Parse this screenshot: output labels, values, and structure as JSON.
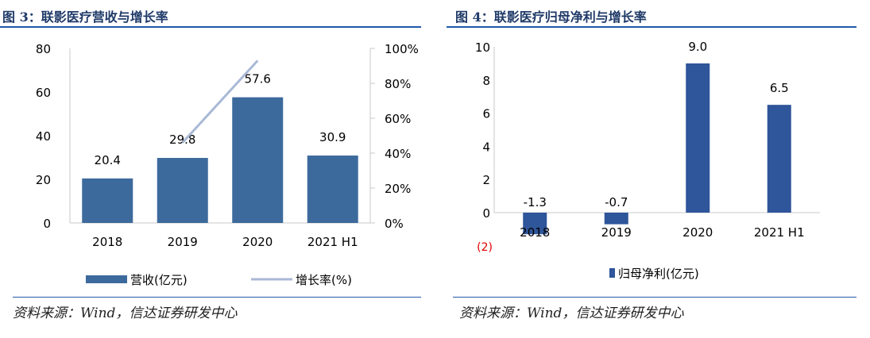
{
  "figures": [
    {
      "title_prefix": "图 3：",
      "title": "联影医疗营收与增长率",
      "source": "资料来源：Wind，信达证券研发中心"
    },
    {
      "title_prefix": "图 4：",
      "title": "联影医疗归母净利与增长率",
      "source": "资料来源：Wind，信达证券研发中心"
    }
  ],
  "colors": {
    "rule": "#1f5aa8",
    "bar_left": "#3d6a9c",
    "line_left": "#a9b9d6",
    "bar_right": "#2f559a",
    "axis": "#c8c8c8",
    "extra_tick": "#e00000"
  },
  "chart_data": [
    {
      "type": "bar",
      "categories": [
        "2018",
        "2019",
        "2020",
        "2021 H1"
      ],
      "series": [
        {
          "name": "营收(亿元)",
          "type": "bar",
          "axis": "left",
          "values": [
            20.4,
            29.8,
            57.6,
            30.9
          ],
          "labels": [
            "20.4",
            "29.8",
            "57.6",
            "30.9"
          ]
        },
        {
          "name": "增长率(%)",
          "type": "line",
          "axis": "right",
          "values": [
            null,
            46,
            93,
            null
          ]
        }
      ],
      "ylim": [
        0,
        80
      ],
      "yticks": [
        "0",
        "20",
        "40",
        "60",
        "80"
      ],
      "y2lim": [
        0,
        100
      ],
      "y2ticks": [
        "0%",
        "20%",
        "40%",
        "60%",
        "80%",
        "100%"
      ],
      "legend": "bottom"
    },
    {
      "type": "bar",
      "categories": [
        "2018",
        "2019",
        "2020",
        "2021 H1"
      ],
      "series": [
        {
          "name": "归母净利(亿元)",
          "type": "bar",
          "values": [
            -1.3,
            -0.7,
            9.0,
            6.5
          ],
          "labels": [
            "-1.3",
            "-0.7",
            "9.0",
            "6.5"
          ]
        }
      ],
      "ylim": [
        -2,
        10
      ],
      "yticks": [
        "0",
        "2",
        "4",
        "6",
        "8",
        "10"
      ],
      "extra_tick": "(2)",
      "legend": "bottom"
    }
  ]
}
